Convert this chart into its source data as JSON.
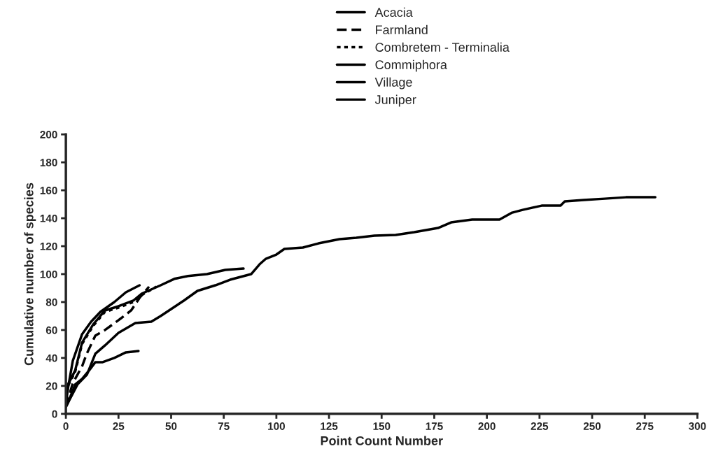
{
  "chart_data": {
    "type": "line",
    "xlabel": "Point Count Number",
    "ylabel": "Cumulative number of species",
    "xlim": [
      0,
      300
    ],
    "ylim": [
      0,
      200
    ],
    "xticks": [
      0,
      25,
      50,
      75,
      100,
      125,
      150,
      175,
      200,
      225,
      250,
      275,
      300
    ],
    "yticks": [
      0,
      20,
      40,
      60,
      80,
      100,
      120,
      140,
      160,
      180,
      200
    ],
    "grid": false,
    "legend": "top",
    "series": [
      {
        "name": "Acacia",
        "color": "#000000",
        "line_style": "solid",
        "x": [
          0,
          1,
          4.4,
          7.7,
          11,
          14,
          17.5,
          23,
          28.5,
          34.5
        ],
        "values": [
          5,
          8,
          21,
          25,
          31,
          37,
          37,
          40,
          44,
          45
        ]
      },
      {
        "name": "Farmland",
        "color": "#000000",
        "line_style": "dashed",
        "x": [
          0,
          3.3,
          7.7,
          9.9,
          14,
          18.6,
          25,
          31,
          35,
          39.5
        ],
        "values": [
          5,
          22,
          34,
          43,
          56,
          60,
          67,
          74,
          83,
          91
        ]
      },
      {
        "name": "Combretem - Terminalia",
        "color": "#000000",
        "line_style": "dotted",
        "x": [
          0,
          1,
          4.4,
          7.7,
          13,
          18.6,
          25,
          32,
          36,
          43
        ],
        "values": [
          5,
          20,
          30,
          50,
          63,
          73,
          76,
          80,
          85,
          91
        ]
      },
      {
        "name": "Commiphora",
        "color": "#000000",
        "line_style": "solid",
        "x": [
          0,
          1,
          4.4,
          7.7,
          13,
          18.6,
          25,
          32,
          36,
          45,
          51.5,
          58,
          67,
          75.7,
          84.4
        ],
        "values": [
          5,
          21,
          31,
          51,
          64,
          74,
          77,
          81,
          86,
          92,
          96.6,
          98.6,
          100,
          103,
          104
        ]
      },
      {
        "name": "Village",
        "color": "#000000",
        "line_style": "solid",
        "x": [
          0,
          0.5,
          3.3,
          7.7,
          12,
          16.4,
          23,
          28.5,
          35
        ],
        "values": [
          5,
          14,
          38,
          57,
          66,
          73,
          80,
          87,
          92
        ]
      },
      {
        "name": "Juniper",
        "color": "#000000",
        "line_style": "solid",
        "x": [
          0,
          1,
          5.5,
          10,
          14,
          18.6,
          25,
          33,
          40.6,
          45,
          50,
          56,
          62.5,
          71,
          78,
          88,
          92,
          95,
          100,
          103.8,
          112.6,
          120,
          130,
          138,
          146.6,
          156.7,
          165.5,
          176.8,
          183,
          193,
          206,
          212,
          217,
          226,
          235,
          237,
          246,
          256,
          266,
          280
        ],
        "values": [
          5,
          8,
          21,
          28,
          43,
          49,
          58,
          65,
          66,
          70,
          75,
          81,
          88,
          92,
          96,
          100,
          107,
          111,
          114,
          118,
          119,
          122,
          125,
          126,
          127.5,
          128,
          130,
          133,
          137,
          139,
          139,
          144,
          146,
          149,
          149,
          152,
          153,
          154,
          155,
          155
        ]
      }
    ]
  }
}
